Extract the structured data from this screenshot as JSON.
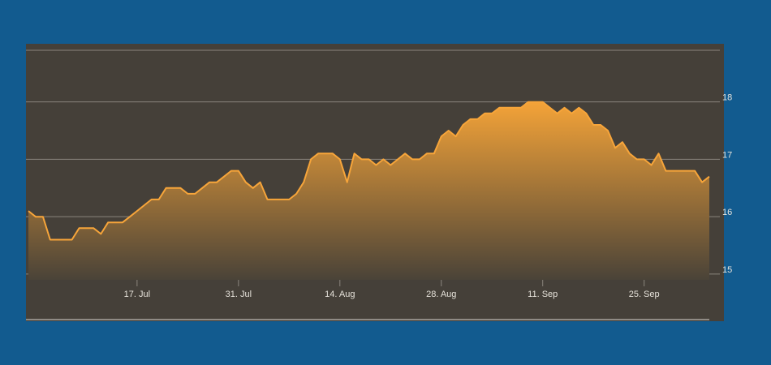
{
  "colors": {
    "page_background": "#125b8f",
    "panel_background": "#454039",
    "grid": "#8a857d",
    "line": "#f7a53a",
    "fill_top": "#f4a338",
    "fill_bottom": "#4a4338",
    "tick_text": "#e6e2da"
  },
  "chart_data": {
    "type": "area",
    "title": "",
    "xlabel": "",
    "ylabel": "",
    "x_range": [
      "2024-07-02",
      "2024-10-04"
    ],
    "ylim": [
      14.9,
      18.9
    ],
    "grid": "horizontal",
    "x_ticks": [
      {
        "date": "2024-07-17",
        "label": "17. Jul"
      },
      {
        "date": "2024-07-31",
        "label": "31. Jul"
      },
      {
        "date": "2024-08-14",
        "label": "14. Aug"
      },
      {
        "date": "2024-08-28",
        "label": "28. Aug"
      },
      {
        "date": "2024-09-11",
        "label": "11. Sep"
      },
      {
        "date": "2024-09-25",
        "label": "25. Sep"
      }
    ],
    "y_ticks": [
      {
        "value": 15,
        "label": "15"
      },
      {
        "value": 16,
        "label": "16"
      },
      {
        "value": 17,
        "label": "17"
      },
      {
        "value": 18,
        "label": "18"
      }
    ],
    "series": [
      {
        "x": [
          "2024-07-02",
          "2024-07-03",
          "2024-07-04",
          "2024-07-05",
          "2024-07-06",
          "2024-07-07",
          "2024-07-08",
          "2024-07-09",
          "2024-07-10",
          "2024-07-11",
          "2024-07-12",
          "2024-07-13",
          "2024-07-14",
          "2024-07-15",
          "2024-07-16",
          "2024-07-17",
          "2024-07-18",
          "2024-07-19",
          "2024-07-20",
          "2024-07-21",
          "2024-07-22",
          "2024-07-23",
          "2024-07-24",
          "2024-07-25",
          "2024-07-26",
          "2024-07-27",
          "2024-07-28",
          "2024-07-29",
          "2024-07-30",
          "2024-07-31",
          "2024-08-01",
          "2024-08-02",
          "2024-08-03",
          "2024-08-04",
          "2024-08-05",
          "2024-08-06",
          "2024-08-07",
          "2024-08-08",
          "2024-08-09",
          "2024-08-10",
          "2024-08-11",
          "2024-08-12",
          "2024-08-13",
          "2024-08-14",
          "2024-08-15",
          "2024-08-16",
          "2024-08-17",
          "2024-08-18",
          "2024-08-19",
          "2024-08-20",
          "2024-08-21",
          "2024-08-22",
          "2024-08-23",
          "2024-08-24",
          "2024-08-25",
          "2024-08-26",
          "2024-08-27",
          "2024-08-28",
          "2024-08-29",
          "2024-08-30",
          "2024-08-31",
          "2024-09-01",
          "2024-09-02",
          "2024-09-03",
          "2024-09-04",
          "2024-09-05",
          "2024-09-06",
          "2024-09-07",
          "2024-09-08",
          "2024-09-09",
          "2024-09-10",
          "2024-09-11",
          "2024-09-12",
          "2024-09-13",
          "2024-09-14",
          "2024-09-15",
          "2024-09-16",
          "2024-09-17",
          "2024-09-18",
          "2024-09-19",
          "2024-09-20",
          "2024-09-21",
          "2024-09-22",
          "2024-09-23",
          "2024-09-24",
          "2024-09-25",
          "2024-09-26",
          "2024-09-27",
          "2024-09-28",
          "2024-09-29",
          "2024-09-30",
          "2024-10-01",
          "2024-10-02",
          "2024-10-03",
          "2024-10-04"
        ],
        "y": [
          16.1,
          16.0,
          16.0,
          15.6,
          15.6,
          15.6,
          15.6,
          15.8,
          15.8,
          15.8,
          15.7,
          15.9,
          15.9,
          15.9,
          16.0,
          16.1,
          16.2,
          16.3,
          16.3,
          16.5,
          16.5,
          16.5,
          16.4,
          16.4,
          16.5,
          16.6,
          16.6,
          16.7,
          16.8,
          16.8,
          16.6,
          16.5,
          16.6,
          16.3,
          16.3,
          16.3,
          16.3,
          16.4,
          16.6,
          17.0,
          17.1,
          17.1,
          17.1,
          17.0,
          16.6,
          17.1,
          17.0,
          17.0,
          16.9,
          17.0,
          16.9,
          17.0,
          17.1,
          17.0,
          17.0,
          17.1,
          17.1,
          17.4,
          17.5,
          17.4,
          17.6,
          17.7,
          17.7,
          17.8,
          17.8,
          17.9,
          17.9,
          17.9,
          17.9,
          18.0,
          18.0,
          18.0,
          17.9,
          17.8,
          17.9,
          17.8,
          17.9,
          17.8,
          17.6,
          17.6,
          17.5,
          17.2,
          17.3,
          17.1,
          17.0,
          17.0,
          16.9,
          17.1,
          16.8,
          16.8,
          16.8,
          16.8,
          16.8,
          16.6,
          16.7
        ]
      }
    ]
  }
}
